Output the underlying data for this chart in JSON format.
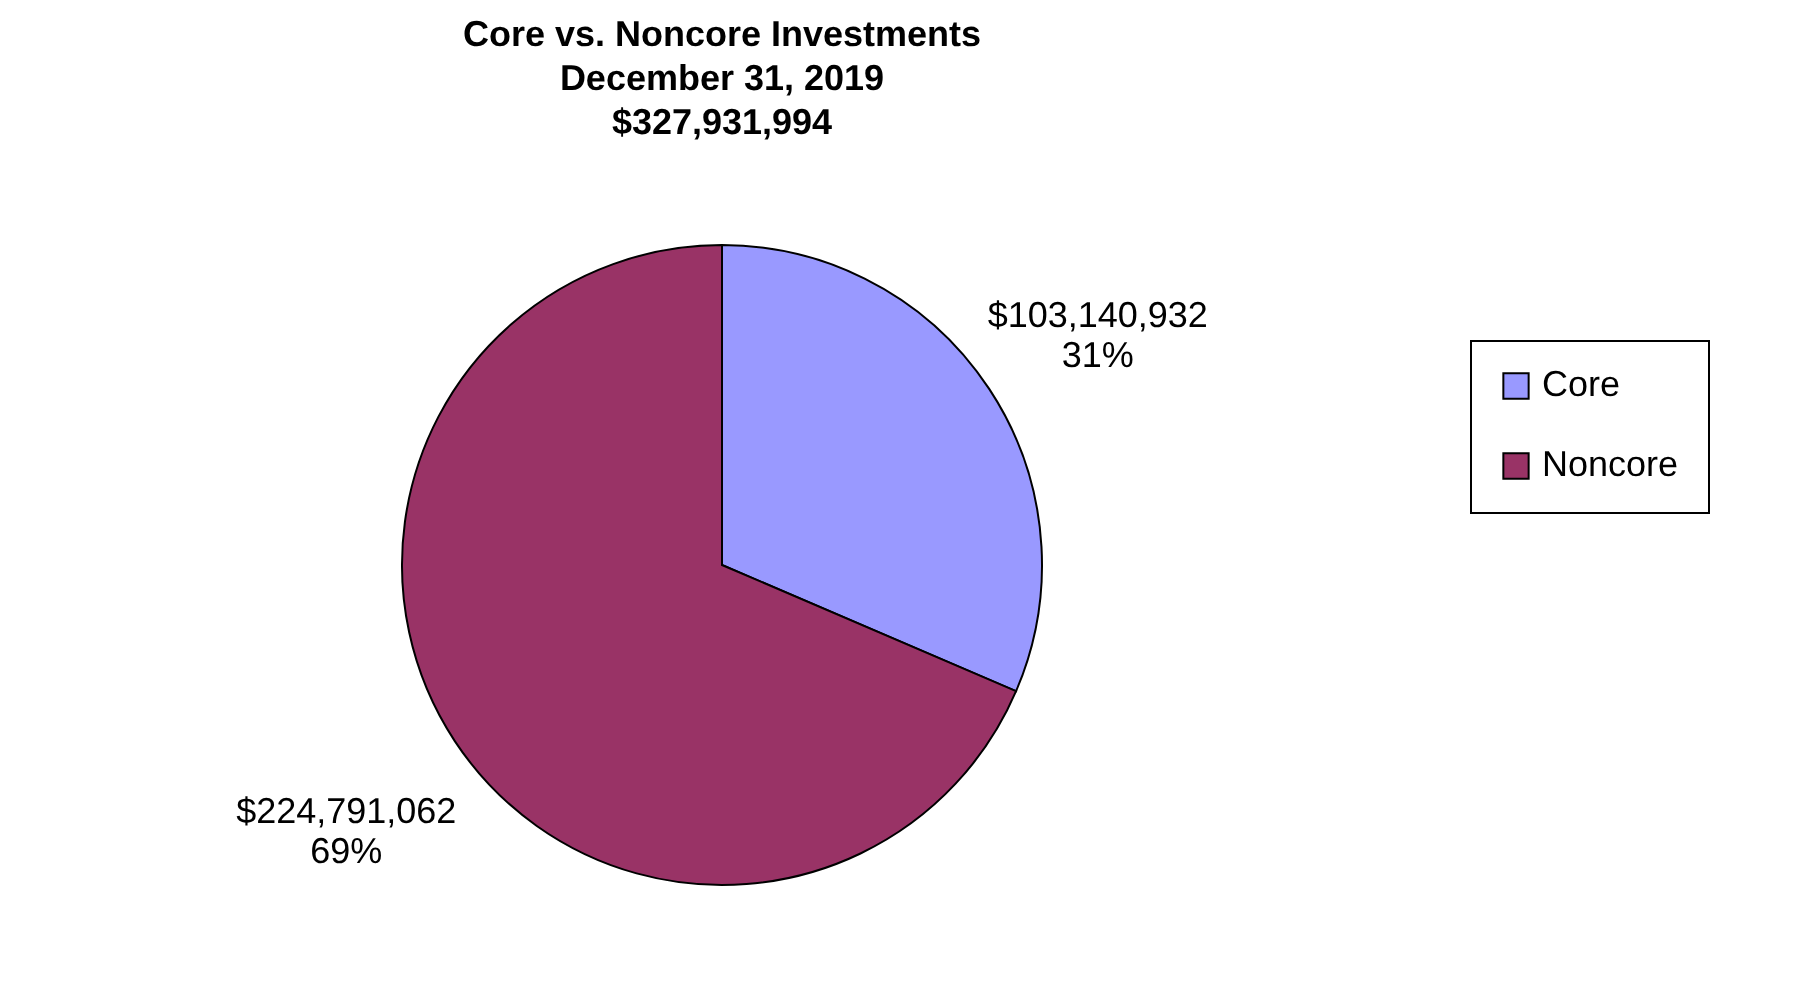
{
  "chart_data": {
    "type": "pie",
    "title": "Core vs. Noncore Investments\nDecember 31, 2019\n$327,931,994",
    "categories": [
      "Core",
      "Noncore"
    ],
    "values": [
      103140932,
      224791062
    ],
    "colors": [
      "#9999ff",
      "#993366"
    ],
    "value_labels": [
      "$103,140,932\n31%",
      "$224,791,062\n69%"
    ],
    "legend": "right"
  }
}
